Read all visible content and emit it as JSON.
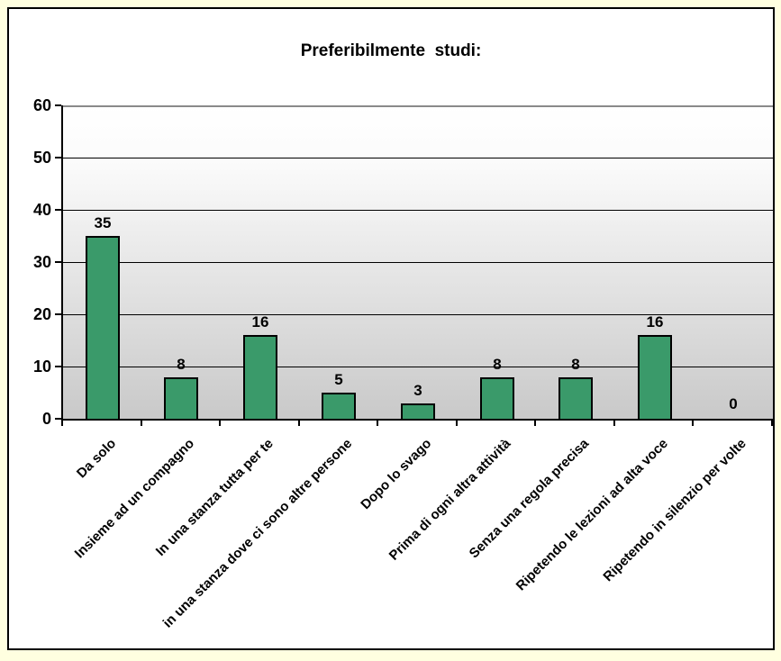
{
  "page": {
    "background_color": "#FFFFE0",
    "frame_background_color": "#FFFFFF",
    "frame_border_color": "#000000"
  },
  "chart_data": {
    "type": "bar",
    "title": "Preferibilmente  studi:",
    "categories": [
      "Da solo",
      "Insieme ad un compagno",
      "In una stanza tutta per te",
      "in una stanza dove ci sono altre persone",
      "Dopo lo svago",
      "Prima di ogni altra attività",
      "Senza una regola precisa",
      "Ripetendo le lezioni ad alta voce",
      "Ripetendo in silenzio per volte"
    ],
    "values": [
      35,
      8,
      16,
      5,
      3,
      8,
      8,
      16,
      0
    ],
    "value_labels": [
      "35",
      "8",
      "16",
      "5",
      "3",
      "8",
      "8",
      "16",
      "0"
    ],
    "xlabel": "",
    "ylabel": "",
    "ylim": [
      0,
      60
    ],
    "yticks": [
      0,
      10,
      20,
      30,
      40,
      50,
      60
    ],
    "grid": true,
    "legend": false,
    "bar_color": "#3A9A6A",
    "bar_border_color": "#000000",
    "gridline_color": "#000000",
    "plot_gradient_top": "#FFFFFF",
    "plot_gradient_bottom": "#C9C9C9",
    "category_label_rotation_deg": -45
  }
}
